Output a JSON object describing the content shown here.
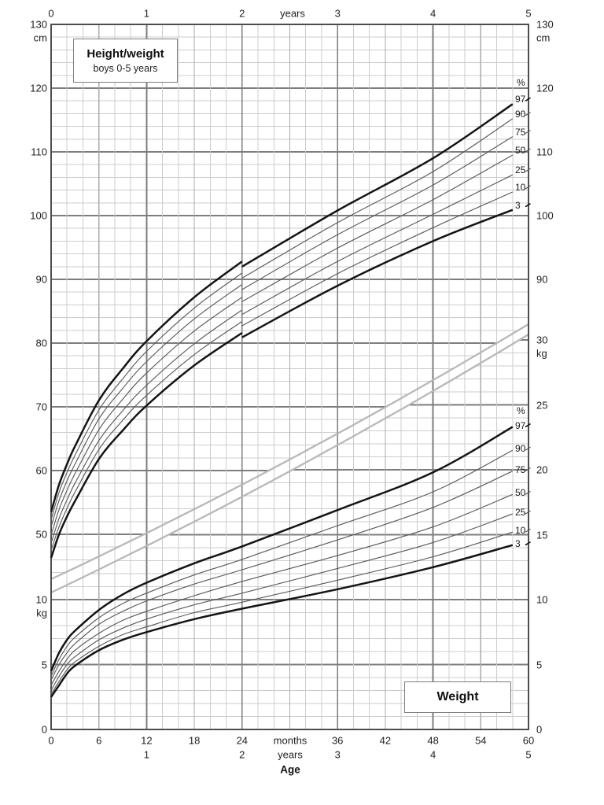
{
  "title": {
    "line1": "Height/weight",
    "line2": "boys 0-5 years"
  },
  "weight_box_label": "Weight",
  "percentile_header": "%",
  "axes": {
    "top": {
      "unit": "years",
      "ticks": [
        "0",
        "1",
        "2",
        "3",
        "4",
        "5"
      ]
    },
    "bottom": {
      "unit_months": "months",
      "unit_years": "years",
      "age_label": "Age",
      "month_ticks": [
        "0",
        "6",
        "12",
        "18",
        "24",
        "36",
        "42",
        "48",
        "54",
        "60"
      ],
      "year_ticks": [
        "1",
        "2",
        "3",
        "4",
        "5"
      ]
    },
    "left": {
      "cm_ticks": [
        "130",
        "120",
        "110",
        "100",
        "90",
        "80",
        "70",
        "60",
        "50"
      ],
      "cm_unit": "cm",
      "kg_ticks": [
        "10",
        "5",
        "0"
      ],
      "kg_unit": "kg"
    },
    "right": {
      "cm_ticks": [
        "130",
        "120",
        "110",
        "100",
        "90"
      ],
      "cm_unit": "cm",
      "kg_ticks": [
        "30",
        "25",
        "20",
        "15",
        "10",
        "5",
        "0"
      ],
      "kg_unit": "kg"
    }
  },
  "chart_data": {
    "type": "line",
    "title": "Height/weight boys 0-5 years",
    "xlabel": "Age",
    "x_units": [
      "months",
      "years"
    ],
    "xlim_months": [
      0,
      60
    ],
    "grid": true,
    "percentiles": [
      97,
      90,
      75,
      50,
      25,
      10,
      3
    ],
    "emphasized_percentiles": [
      97,
      3
    ],
    "height": {
      "ylabel": "cm",
      "ylim": [
        44,
        130
      ],
      "note": "length 0-24 months, standing height 24-60 months (step down at 24 months)",
      "months_infant": [
        0,
        1,
        2,
        3,
        6,
        9,
        12,
        18,
        24
      ],
      "months_child": [
        24,
        36,
        48,
        58
      ],
      "series": [
        {
          "percentile": 97,
          "infant": [
            53.5,
            57.8,
            61.0,
            63.8,
            71.0,
            76.0,
            80.3,
            87.2,
            92.8
          ],
          "child": [
            92.0,
            100.8,
            109.0,
            117.5
          ]
        },
        {
          "percentile": 90,
          "infant": [
            52.3,
            56.6,
            59.7,
            62.4,
            69.5,
            74.4,
            78.7,
            85.5,
            91.0
          ],
          "child": [
            90.2,
            98.9,
            106.9,
            115.2
          ]
        },
        {
          "percentile": 75,
          "infant": [
            51.2,
            55.3,
            58.4,
            61.0,
            68.1,
            72.9,
            77.1,
            83.8,
            89.2
          ],
          "child": [
            88.4,
            97.0,
            104.8,
            112.4
          ]
        },
        {
          "percentile": 50,
          "infant": [
            49.9,
            53.9,
            56.9,
            59.5,
            66.4,
            71.2,
            75.3,
            81.9,
            87.2
          ],
          "child": [
            86.5,
            94.9,
            102.5,
            109.5
          ]
        },
        {
          "percentile": 25,
          "infant": [
            48.6,
            52.5,
            55.4,
            58.0,
            64.7,
            69.4,
            73.4,
            79.9,
            85.2
          ],
          "child": [
            84.5,
            92.8,
            100.2,
            106.4
          ]
        },
        {
          "percentile": 10,
          "infant": [
            47.5,
            51.2,
            54.1,
            56.6,
            63.3,
            67.9,
            71.8,
            78.2,
            83.4
          ],
          "child": [
            82.7,
            90.9,
            98.1,
            103.7
          ]
        },
        {
          "percentile": 3,
          "infant": [
            46.3,
            50.0,
            52.8,
            55.2,
            61.8,
            66.3,
            70.2,
            76.5,
            81.6
          ],
          "child": [
            80.9,
            89.0,
            96.0,
            100.9
          ]
        }
      ]
    },
    "weight": {
      "ylabel": "kg",
      "ylim": [
        0,
        30
      ],
      "months": [
        0,
        1,
        2,
        3,
        6,
        9,
        12,
        18,
        24,
        36,
        48,
        58
      ],
      "series": [
        {
          "percentile": 97,
          "values": [
            4.5,
            5.9,
            6.9,
            7.6,
            9.2,
            10.4,
            11.3,
            12.8,
            14.1,
            16.9,
            19.8,
            23.3
          ]
        },
        {
          "percentile": 90,
          "values": [
            4.1,
            5.4,
            6.4,
            7.1,
            8.6,
            9.7,
            10.5,
            11.9,
            13.1,
            15.7,
            18.3,
            21.5
          ]
        },
        {
          "percentile": 75,
          "values": [
            3.8,
            5.0,
            5.9,
            6.6,
            8.1,
            9.1,
            9.9,
            11.2,
            12.3,
            14.6,
            17.1,
            19.9
          ]
        },
        {
          "percentile": 50,
          "values": [
            3.4,
            4.5,
            5.4,
            6.1,
            7.4,
            8.4,
            9.1,
            10.3,
            11.4,
            13.4,
            15.6,
            18.1
          ]
        },
        {
          "percentile": 25,
          "values": [
            3.0,
            4.1,
            5.0,
            5.6,
            6.9,
            7.8,
            8.5,
            9.6,
            10.5,
            12.4,
            14.4,
            16.6
          ]
        },
        {
          "percentile": 10,
          "values": [
            2.7,
            3.7,
            4.6,
            5.2,
            6.4,
            7.3,
            7.9,
            9.0,
            9.8,
            11.5,
            13.3,
            15.2
          ]
        },
        {
          "percentile": 3,
          "values": [
            2.5,
            3.4,
            4.3,
            4.9,
            6.1,
            6.9,
            7.5,
            8.5,
            9.3,
            10.8,
            12.5,
            14.2
          ]
        }
      ]
    },
    "divider_band": "two parallel light gray diagonal lines separating height grid (cm) from weight grid (kg)"
  }
}
